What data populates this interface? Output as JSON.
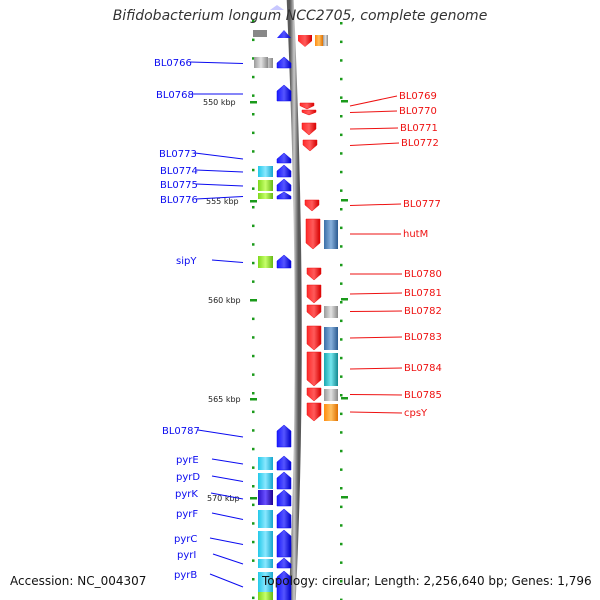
{
  "title": "Bifidobacterium longum NCC2705, complete genome",
  "footer": {
    "accession": "Accession: NC_004307",
    "summary": "Topology: circular; Length: 2,256,640 bp; Genes: 1,796"
  },
  "colors": {
    "forward": "#0b0bf0",
    "reverse": "#ee1111",
    "backbone": "#8a8a8a",
    "ticks": "#1a9a1a"
  },
  "kbp_marks": [
    {
      "label": "550 kbp",
      "kbp": 550
    },
    {
      "label": "555 kbp",
      "kbp": 555
    },
    {
      "label": "560 kbp",
      "kbp": 560
    },
    {
      "label": "565 kbp",
      "kbp": 565
    },
    {
      "label": "570 kbp",
      "kbp": 570
    }
  ],
  "forward_genes": [
    {
      "label": "BL0766",
      "cog": "grey"
    },
    {
      "label": "BL0768",
      "cog": "none"
    },
    {
      "label": "BL0773",
      "cog": "none"
    },
    {
      "label": "BL0774",
      "cog": "cyan"
    },
    {
      "label": "BL0775",
      "cog": "lime"
    },
    {
      "label": "BL0776",
      "cog": "lime"
    },
    {
      "label": "sipY",
      "cog": "lime"
    },
    {
      "label": "BL0787",
      "cog": "none"
    },
    {
      "label": "pyrE",
      "cog": "cyan"
    },
    {
      "label": "pyrD",
      "cog": "cyan"
    },
    {
      "label": "pyrK",
      "cog": "blue"
    },
    {
      "label": "pyrF",
      "cog": "cyan"
    },
    {
      "label": "pyrC",
      "cog": "cyan"
    },
    {
      "label": "pyrI",
      "cog": "cyan"
    },
    {
      "label": "pyrB",
      "cog": "cyan"
    }
  ],
  "reverse_genes": [
    {
      "label": "BL0769",
      "cog": "none"
    },
    {
      "label": "BL0770",
      "cog": "none"
    },
    {
      "label": "BL0771",
      "cog": "none"
    },
    {
      "label": "BL0772",
      "cog": "none"
    },
    {
      "label": "BL0777",
      "cog": "none"
    },
    {
      "label": "hutM",
      "cog": "steel"
    },
    {
      "label": "BL0780",
      "cog": "none"
    },
    {
      "label": "BL0781",
      "cog": "none"
    },
    {
      "label": "BL0782",
      "cog": "grey"
    },
    {
      "label": "BL0783",
      "cog": "steel"
    },
    {
      "label": "BL0784",
      "cog": "teal"
    },
    {
      "label": "BL0785",
      "cog": "grey"
    },
    {
      "label": "cpsY",
      "cog": "orange"
    }
  ]
}
